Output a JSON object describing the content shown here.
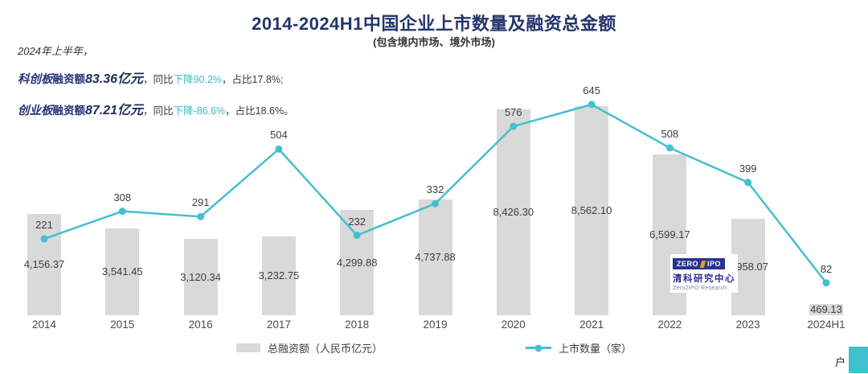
{
  "header": {
    "title": "2014-2024H1中国企业上市数量及融资总金额",
    "subtitle": "(包含境内市场、境外市场)"
  },
  "annotations": {
    "lines": [
      [
        {
          "t": "2024年上半年，",
          "s": "intro"
        }
      ],
      [
        {
          "t": "科创板",
          "s": "board"
        },
        {
          "t": "融资额",
          "s": "mid"
        },
        {
          "t": "83.36亿元",
          "s": "big"
        },
        {
          "t": "，同比",
          "s": "tail"
        },
        {
          "t": "下降90.2%",
          "s": "teal"
        },
        {
          "t": "，占比17.8%;",
          "s": "tail"
        }
      ],
      [
        {
          "t": "创业板",
          "s": "board"
        },
        {
          "t": "融资额",
          "s": "mid"
        },
        {
          "t": "87.21亿元",
          "s": "big"
        },
        {
          "t": "，同比",
          "s": "tail"
        },
        {
          "t": "下降-86.6%",
          "s": "teal"
        },
        {
          "t": "，占比18.6%。",
          "s": "tail"
        }
      ]
    ]
  },
  "chart_data": {
    "type": "bar+line",
    "title": "2014-2024H1中国企业上市数量及融资总金额",
    "subtitle": "(包含境内市场、境外市场)",
    "categories": [
      "2014",
      "2015",
      "2016",
      "2017",
      "2018",
      "2019",
      "2020",
      "2021",
      "2022",
      "2023",
      "2024H1"
    ],
    "series": [
      {
        "name": "总融资额（人民币亿元）",
        "type": "bar",
        "color": "#D9D9D9",
        "values": [
          4156.37,
          3541.45,
          3120.34,
          3232.75,
          4299.88,
          4737.88,
          8426.3,
          8562.1,
          6599.17,
          3958.07,
          469.13
        ],
        "labels": [
          "4,156.37",
          "3,541.45",
          "3,120.34",
          "3,232.75",
          "4,299.88",
          "4,737.88",
          "8,426.30",
          "8,562.10",
          "6,599.17",
          "3,958.07",
          "469.13"
        ]
      },
      {
        "name": "上市数量（家）",
        "type": "line",
        "color": "#45C0CE",
        "values": [
          221,
          308,
          291,
          504,
          232,
          332,
          576,
          645,
          508,
          399,
          82
        ]
      }
    ],
    "legend_position": "bottom",
    "grid": false,
    "axes_hidden": true,
    "dual_axis": true
  },
  "logo": {
    "zero": "ZERO",
    "ipo": "IPO",
    "cn": "清科研究中心",
    "en": "Zero2IPO Research"
  },
  "corner": {
    "char": "户"
  },
  "colors": {
    "bar_gray": "#D9D9D9",
    "line_teal": "#45C0CE",
    "title_navy": "#24356B",
    "annotation_navy": "#26337B",
    "annotation_teal": "#3BB9C6"
  }
}
